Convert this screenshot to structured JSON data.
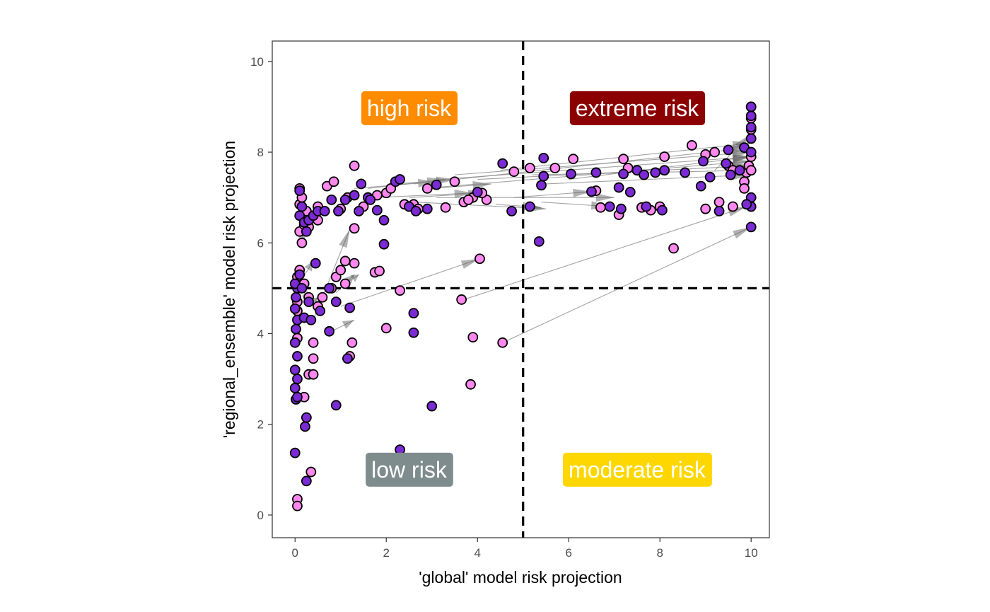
{
  "chart_data": {
    "type": "scatter",
    "xlabel": "'global' model risk projection",
    "ylabel": "'regional_ensemble' model risk projection",
    "xlim": [
      -0.5,
      10.4
    ],
    "ylim": [
      -0.5,
      10.45
    ],
    "x_ticks": [
      0,
      2,
      4,
      6,
      8,
      10
    ],
    "y_ticks": [
      0,
      2,
      4,
      6,
      8,
      10
    ],
    "tick_labels_x": [
      "0",
      "2",
      "4",
      "6",
      "8",
      "10"
    ],
    "tick_labels_y": [
      "0",
      "2",
      "4",
      "6",
      "8",
      "10"
    ],
    "thresholds": {
      "x": 5,
      "y": 5
    },
    "grid": false,
    "colors": {
      "series_a": "#ff88ee",
      "series_b": "#7b2ad4",
      "arrows": "#8c8c8c",
      "threshold_line": "#000000"
    },
    "quadrant_labels": [
      {
        "text": "high risk",
        "x": 2.5,
        "y": 8.97,
        "color": "#ff8c00"
      },
      {
        "text": "extreme risk",
        "x": 7.5,
        "y": 8.97,
        "color": "#8b0000"
      },
      {
        "text": "low risk",
        "x": 2.5,
        "y": 1.0,
        "color": "#7f8c8d"
      },
      {
        "text": "moderate risk",
        "x": 7.5,
        "y": 1.0,
        "color": "#ffd700"
      }
    ],
    "series": [
      {
        "color": "#ff88ee",
        "points": [
          [
            0.05,
            0.35
          ],
          [
            0.05,
            0.2
          ],
          [
            0.35,
            0.95
          ],
          [
            0.2,
            2.6
          ],
          [
            0.3,
            3.1
          ],
          [
            0.4,
            3.1
          ],
          [
            0.4,
            3.45
          ],
          [
            0.4,
            3.8
          ],
          [
            0.05,
            3.9
          ],
          [
            0.05,
            4.5
          ],
          [
            0.05,
            4.7
          ],
          [
            0.05,
            5.25
          ],
          [
            0.1,
            5.4
          ],
          [
            0.2,
            5.1
          ],
          [
            0.3,
            4.8
          ],
          [
            0.5,
            4.6
          ],
          [
            0.6,
            4.8
          ],
          [
            0.8,
            5.0
          ],
          [
            0.9,
            5.25
          ],
          [
            1.0,
            5.4
          ],
          [
            1.1,
            5.6
          ],
          [
            1.3,
            5.55
          ],
          [
            1.1,
            5.1
          ],
          [
            1.2,
            3.5
          ],
          [
            1.25,
            3.8
          ],
          [
            1.75,
            5.35
          ],
          [
            1.85,
            5.38
          ],
          [
            2.0,
            4.12
          ],
          [
            2.3,
            4.95
          ],
          [
            3.65,
            4.75
          ],
          [
            3.9,
            3.92
          ],
          [
            4.55,
            3.8
          ],
          [
            4.05,
            5.65
          ],
          [
            3.85,
            2.88
          ],
          [
            0.1,
            6.25
          ],
          [
            0.15,
            6.0
          ],
          [
            0.2,
            6.4
          ],
          [
            0.3,
            6.35
          ],
          [
            0.1,
            6.85
          ],
          [
            0.15,
            7.0
          ],
          [
            0.1,
            7.2
          ],
          [
            0.25,
            6.7
          ],
          [
            0.5,
            6.5
          ],
          [
            0.5,
            6.8
          ],
          [
            0.7,
            7.25
          ],
          [
            0.85,
            7.35
          ],
          [
            1.0,
            6.75
          ],
          [
            1.15,
            7.0
          ],
          [
            1.3,
            7.7
          ],
          [
            1.3,
            6.32
          ],
          [
            1.5,
            6.8
          ],
          [
            1.6,
            7.0
          ],
          [
            1.8,
            7.05
          ],
          [
            2.0,
            7.1
          ],
          [
            2.1,
            7.2
          ],
          [
            2.4,
            6.85
          ],
          [
            2.6,
            6.85
          ],
          [
            2.7,
            6.75
          ],
          [
            2.9,
            7.2
          ],
          [
            3.3,
            6.78
          ],
          [
            3.5,
            7.35
          ],
          [
            3.7,
            6.9
          ],
          [
            3.9,
            7.0
          ],
          [
            4.2,
            6.95
          ],
          [
            4.8,
            7.57
          ],
          [
            5.15,
            7.65
          ],
          [
            5.7,
            7.65
          ],
          [
            6.1,
            7.85
          ],
          [
            7.2,
            7.85
          ],
          [
            7.3,
            7.65
          ],
          [
            8.1,
            7.9
          ],
          [
            8.7,
            8.15
          ],
          [
            9.0,
            7.95
          ],
          [
            9.2,
            8.0
          ],
          [
            9.5,
            7.7
          ],
          [
            9.6,
            7.6
          ],
          [
            9.9,
            7.55
          ],
          [
            9.95,
            7.7
          ],
          [
            9.85,
            7.35
          ],
          [
            9.85,
            7.2
          ],
          [
            10.0,
            7.9
          ],
          [
            10.0,
            8.5
          ],
          [
            10.0,
            8.75
          ],
          [
            10.0,
            9.0
          ],
          [
            10.0,
            7.6
          ],
          [
            9.3,
            6.9
          ],
          [
            9.6,
            6.8
          ],
          [
            9.0,
            6.75
          ],
          [
            8.3,
            5.88
          ],
          [
            8.0,
            6.8
          ],
          [
            7.1,
            6.62
          ],
          [
            7.6,
            6.78
          ],
          [
            7.8,
            6.72
          ],
          [
            6.6,
            7.15
          ],
          [
            6.7,
            6.78
          ],
          [
            4.1,
            7.1
          ],
          [
            3.8,
            6.95
          ]
        ]
      },
      {
        "color": "#7b2ad4",
        "points": [
          [
            0.0,
            1.37
          ],
          [
            0.25,
            0.75
          ],
          [
            0.22,
            1.95
          ],
          [
            0.25,
            2.15
          ],
          [
            0.02,
            2.55
          ],
          [
            0.05,
            2.6
          ],
          [
            0.0,
            2.8
          ],
          [
            0.05,
            3.0
          ],
          [
            0.0,
            3.2
          ],
          [
            0.05,
            3.5
          ],
          [
            0.0,
            3.8
          ],
          [
            0.02,
            4.1
          ],
          [
            0.05,
            4.3
          ],
          [
            0.0,
            4.55
          ],
          [
            0.02,
            4.8
          ],
          [
            0.05,
            5.0
          ],
          [
            0.0,
            5.1
          ],
          [
            0.1,
            5.3
          ],
          [
            0.15,
            5.0
          ],
          [
            0.2,
            4.35
          ],
          [
            0.35,
            4.3
          ],
          [
            0.3,
            4.7
          ],
          [
            0.45,
            5.55
          ],
          [
            0.55,
            4.5
          ],
          [
            0.75,
            5.0
          ],
          [
            0.9,
            4.7
          ],
          [
            0.75,
            4.05
          ],
          [
            0.9,
            2.42
          ],
          [
            1.15,
            3.45
          ],
          [
            1.2,
            4.57
          ],
          [
            1.95,
            5.97
          ],
          [
            2.3,
            1.44
          ],
          [
            3.0,
            2.4
          ],
          [
            2.6,
            4.02
          ],
          [
            2.6,
            4.45
          ],
          [
            0.1,
            7.15
          ],
          [
            0.15,
            6.8
          ],
          [
            0.1,
            6.6
          ],
          [
            0.2,
            6.45
          ],
          [
            0.25,
            6.25
          ],
          [
            0.3,
            6.5
          ],
          [
            0.4,
            6.6
          ],
          [
            0.5,
            6.7
          ],
          [
            0.65,
            6.7
          ],
          [
            0.8,
            6.95
          ],
          [
            0.95,
            6.7
          ],
          [
            1.1,
            6.95
          ],
          [
            1.3,
            7.05
          ],
          [
            1.45,
            7.3
          ],
          [
            1.6,
            7.0
          ],
          [
            1.8,
            6.72
          ],
          [
            1.95,
            6.5
          ],
          [
            2.2,
            7.35
          ],
          [
            2.3,
            7.4
          ],
          [
            2.5,
            6.8
          ],
          [
            2.9,
            6.75
          ],
          [
            3.1,
            7.28
          ],
          [
            4.0,
            7.12
          ],
          [
            4.55,
            7.75
          ],
          [
            4.75,
            6.7
          ],
          [
            5.15,
            6.8
          ],
          [
            5.45,
            7.87
          ],
          [
            5.4,
            7.27
          ],
          [
            5.45,
            7.47
          ],
          [
            5.35,
            6.03
          ],
          [
            6.05,
            7.52
          ],
          [
            6.5,
            7.13
          ],
          [
            6.6,
            7.55
          ],
          [
            6.9,
            6.8
          ],
          [
            7.1,
            7.22
          ],
          [
            7.15,
            6.75
          ],
          [
            7.2,
            7.52
          ],
          [
            7.35,
            7.12
          ],
          [
            7.5,
            7.6
          ],
          [
            7.65,
            7.5
          ],
          [
            7.9,
            7.55
          ],
          [
            8.1,
            7.6
          ],
          [
            8.55,
            7.55
          ],
          [
            8.9,
            7.25
          ],
          [
            8.95,
            7.8
          ],
          [
            9.1,
            7.45
          ],
          [
            9.3,
            6.7
          ],
          [
            9.45,
            7.75
          ],
          [
            9.5,
            8.05
          ],
          [
            9.55,
            7.5
          ],
          [
            9.75,
            7.6
          ],
          [
            9.85,
            8.1
          ],
          [
            10.0,
            8.0
          ],
          [
            10.0,
            8.3
          ],
          [
            10.0,
            8.55
          ],
          [
            10.0,
            8.8
          ],
          [
            10.0,
            9.0
          ],
          [
            10.0,
            7.0
          ],
          [
            10.0,
            6.8
          ],
          [
            9.9,
            6.85
          ],
          [
            10.0,
            6.35
          ],
          [
            8.05,
            6.72
          ],
          [
            7.7,
            6.8
          ],
          [
            1.65,
            6.95
          ],
          [
            1.4,
            6.7
          ],
          [
            2.65,
            6.7
          ]
        ]
      }
    ],
    "arrows": [
      [
        1.3,
        7.2,
        3.1,
        7.35
      ],
      [
        1.6,
        7.2,
        3.3,
        7.4
      ],
      [
        1.8,
        7.0,
        3.9,
        7.1
      ],
      [
        2.5,
        7.0,
        4.2,
        7.1
      ],
      [
        2.2,
        7.3,
        3.5,
        7.4
      ],
      [
        3.0,
        7.2,
        4.3,
        7.3
      ],
      [
        3.2,
        7.4,
        10.0,
        7.9
      ],
      [
        2.6,
        7.3,
        10.0,
        8.1
      ],
      [
        2.8,
        7.2,
        10.0,
        7.8
      ],
      [
        3.5,
        7.5,
        10.0,
        8.0
      ],
      [
        4.0,
        7.4,
        10.0,
        7.7
      ],
      [
        4.5,
        7.6,
        10.0,
        8.2
      ],
      [
        5.2,
        7.5,
        10.0,
        7.6
      ],
      [
        5.5,
        7.3,
        10.0,
        7.5
      ],
      [
        6.0,
        7.4,
        10.0,
        7.9
      ],
      [
        4.8,
        7.0,
        6.5,
        7.13
      ],
      [
        5.4,
        6.9,
        6.9,
        6.8
      ],
      [
        4.4,
        6.85,
        5.4,
        6.78
      ],
      [
        2.6,
        6.9,
        5.5,
        6.75
      ],
      [
        3.1,
        7.0,
        7.0,
        7.0
      ],
      [
        1.0,
        5.0,
        1.3,
        5.3
      ],
      [
        0.9,
        4.9,
        1.2,
        5.2
      ],
      [
        1.1,
        5.1,
        1.4,
        5.3
      ],
      [
        0.3,
        4.6,
        0.5,
        4.8
      ],
      [
        0.8,
        4.05,
        1.3,
        4.3
      ],
      [
        3.7,
        4.75,
        9.9,
        6.8
      ],
      [
        4.55,
        3.8,
        10.0,
        6.35
      ],
      [
        0.1,
        6.3,
        0.2,
        6.05
      ],
      [
        0.05,
        4.6,
        0.05,
        5.4
      ],
      [
        0.15,
        5.2,
        0.4,
        5.6
      ],
      [
        0.4,
        4.3,
        1.2,
        6.3
      ],
      [
        1.0,
        4.6,
        4.05,
        5.65
      ],
      [
        0.1,
        5.0,
        0.3,
        4.8
      ],
      [
        9.2,
        7.6,
        10.0,
        8.4
      ]
    ]
  }
}
